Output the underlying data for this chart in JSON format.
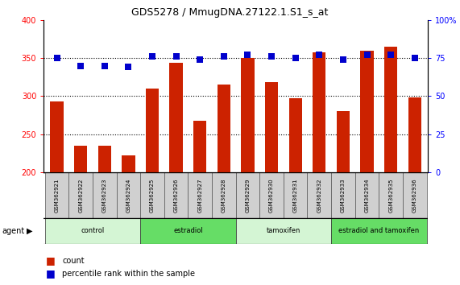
{
  "title": "GDS5278 / MmugDNA.27122.1.S1_s_at",
  "samples": [
    "GSM362921",
    "GSM362922",
    "GSM362923",
    "GSM362924",
    "GSM362925",
    "GSM362926",
    "GSM362927",
    "GSM362928",
    "GSM362929",
    "GSM362930",
    "GSM362931",
    "GSM362932",
    "GSM362933",
    "GSM362934",
    "GSM362935",
    "GSM362936"
  ],
  "counts": [
    293,
    235,
    235,
    222,
    310,
    344,
    268,
    315,
    350,
    318,
    297,
    358,
    280,
    360,
    365,
    298
  ],
  "percentiles": [
    75,
    70,
    70,
    69,
    76,
    76,
    74,
    76,
    77,
    76,
    75,
    77,
    74,
    77,
    77,
    75
  ],
  "groups": [
    {
      "label": "control",
      "start": 0,
      "end": 3,
      "color": "#d4f5d4"
    },
    {
      "label": "estradiol",
      "start": 4,
      "end": 7,
      "color": "#66dd66"
    },
    {
      "label": "tamoxifen",
      "start": 8,
      "end": 11,
      "color": "#d4f5d4"
    },
    {
      "label": "estradiol and tamoxifen",
      "start": 12,
      "end": 15,
      "color": "#66dd66"
    }
  ],
  "bar_color": "#cc2200",
  "dot_color": "#0000cc",
  "ylim_left": [
    200,
    400
  ],
  "ylim_right": [
    0,
    100
  ],
  "yticks_left": [
    200,
    250,
    300,
    350,
    400
  ],
  "yticks_right": [
    0,
    25,
    50,
    75,
    100
  ],
  "grid_values": [
    250,
    300,
    350
  ],
  "bar_width": 0.55,
  "bg_color": "#ffffff",
  "label_bg": "#d0d0d0"
}
